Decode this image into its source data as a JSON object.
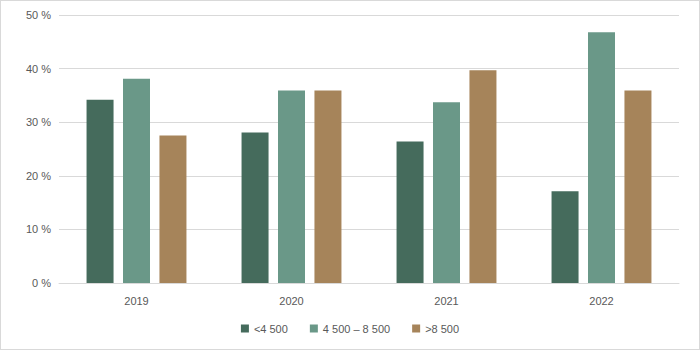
{
  "chart_data": {
    "type": "bar",
    "categories": [
      "2019",
      "2020",
      "2021",
      "2022"
    ],
    "series": [
      {
        "name": "<4 500",
        "color": "#456b5c",
        "values": [
          34.2,
          28.1,
          26.4,
          17.1
        ]
      },
      {
        "name": "4 500 – 8 500",
        "color": "#6a9888",
        "values": [
          38.1,
          35.9,
          33.7,
          46.8
        ]
      },
      {
        "name": ">8 500",
        "color": "#a6845a",
        "values": [
          27.5,
          35.9,
          39.7,
          35.9
        ]
      }
    ],
    "ylim": [
      0,
      50
    ],
    "yticks": [
      {
        "value": 0,
        "label": "0 %"
      },
      {
        "value": 10,
        "label": "10 %"
      },
      {
        "value": 20,
        "label": "20 %"
      },
      {
        "value": 30,
        "label": "30 %"
      },
      {
        "value": 40,
        "label": "40 %"
      },
      {
        "value": 50,
        "label": "50 %"
      }
    ],
    "grid": true,
    "legend": "bottom"
  }
}
